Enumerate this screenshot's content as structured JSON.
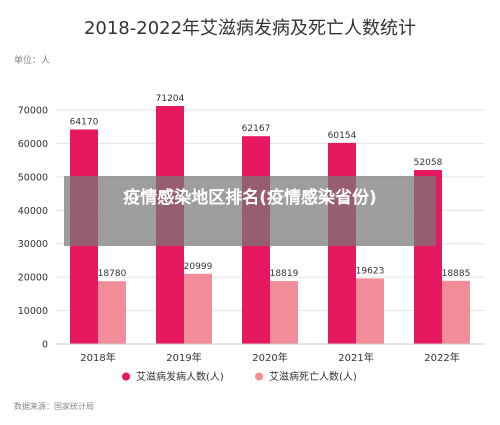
{
  "colors": {
    "cases": "#e6185f",
    "deaths": "#f28c99",
    "grid": "#e5e5e5",
    "text": "#333333",
    "muted": "#888888"
  },
  "overlay_text": "疫情感染地区排名(疫情感染省份)",
  "chart_data": {
    "type": "bar",
    "title": "2018-2022年艾滋病发病及死亡人数统计",
    "unit_label": "单位：人",
    "source": "数据来源：国家统计局",
    "categories": [
      "2018年",
      "2019年",
      "2020年",
      "2021年",
      "2022年"
    ],
    "series": [
      {
        "name": "艾滋病发病人数(人)",
        "values": [
          64170,
          71204,
          62167,
          60154,
          52058
        ]
      },
      {
        "name": "艾滋病死亡人数(人)",
        "values": [
          18780,
          20999,
          18819,
          19623,
          18885
        ]
      }
    ],
    "ylim": [
      0,
      70000
    ],
    "yticks": [
      0,
      10000,
      20000,
      30000,
      40000,
      50000,
      60000,
      70000
    ],
    "grid": true,
    "legend": "bottom-center"
  }
}
